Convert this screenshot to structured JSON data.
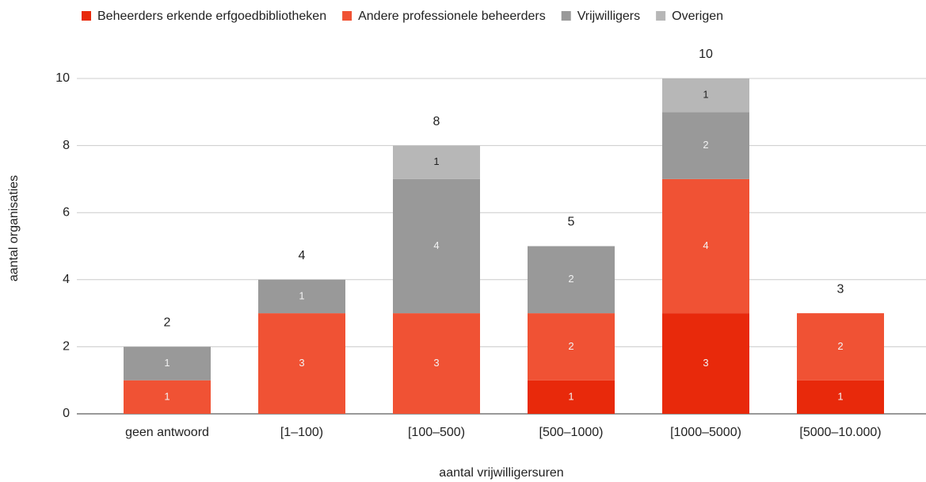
{
  "chart_data": {
    "type": "stacked-bar",
    "xlabel": "aantal vrijwilligersuren",
    "ylabel": "aantal organisaties",
    "categories": [
      "geen antwoord",
      "[1–100)",
      "[100–500)",
      "[500–1000)",
      "[1000–5000)",
      "[5000–10.000)"
    ],
    "series": [
      {
        "name": "Beheerders erkende erfgoedbibliotheken",
        "color": "#e8290b",
        "values": [
          0,
          0,
          0,
          1,
          3,
          1
        ]
      },
      {
        "name": "Andere professionele beheerders",
        "color": "#f05234",
        "values": [
          1,
          3,
          3,
          2,
          4,
          2
        ]
      },
      {
        "name": "Vrijwilligers",
        "color": "#999999",
        "values": [
          1,
          1,
          4,
          2,
          2,
          0
        ]
      },
      {
        "name": "Overigen",
        "color": "#b7b7b7",
        "values": [
          0,
          0,
          1,
          0,
          1,
          0
        ]
      }
    ],
    "totals": [
      2,
      4,
      8,
      5,
      10,
      3
    ],
    "ylim": [
      0,
      10
    ],
    "yticks": [
      0,
      2,
      4,
      6,
      8,
      10
    ],
    "grid": true,
    "legend": "top"
  }
}
